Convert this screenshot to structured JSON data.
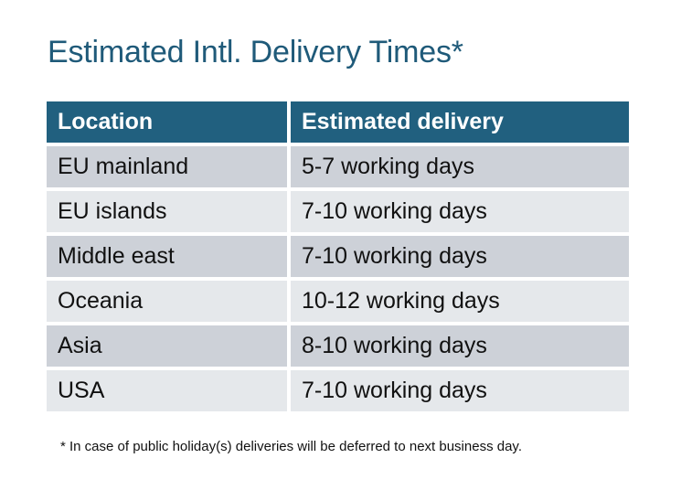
{
  "title": "Estimated Intl. Delivery Times*",
  "table": {
    "headers": [
      "Location",
      "Estimated delivery"
    ],
    "rows": [
      [
        "EU mainland",
        "5-7 working days"
      ],
      [
        "EU islands",
        "7-10 working days"
      ],
      [
        "Middle east",
        "7-10 working days"
      ],
      [
        "Oceania",
        "10-12 working days"
      ],
      [
        "Asia",
        "8-10 working days"
      ],
      [
        "USA",
        "7-10 working days"
      ]
    ]
  },
  "footnote": "* In case of public holiday(s) deliveries will be deferred to next business day.",
  "colors": {
    "title": "#1f5a79",
    "header_bg": "#21607f",
    "row_dark": "#cdd1d8",
    "row_light": "#e5e8eb"
  }
}
